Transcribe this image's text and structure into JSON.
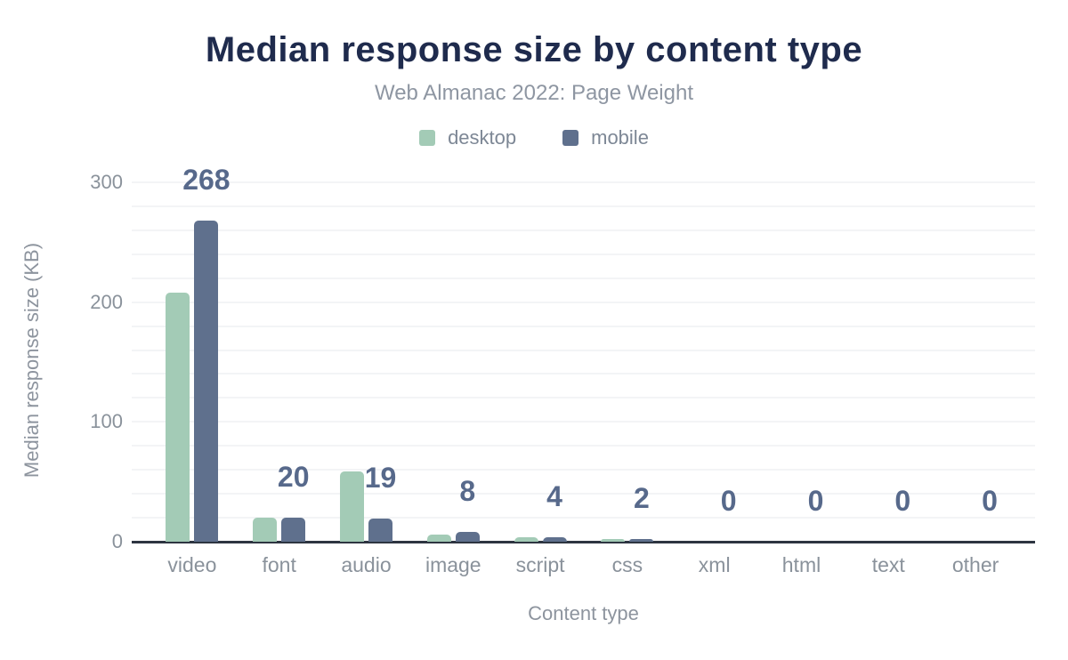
{
  "header": {
    "title": "Median response size by content type",
    "subtitle": "Web Almanac 2022: Page Weight"
  },
  "legend": [
    {
      "label": "desktop",
      "color": "#a3cbb6"
    },
    {
      "label": "mobile",
      "color": "#5f708d"
    }
  ],
  "axes": {
    "ylabel": "Median response size (KB)",
    "xlabel": "Content type"
  },
  "chart_data": {
    "type": "bar",
    "title": "Median response size by content type",
    "subtitle": "Web Almanac 2022: Page Weight",
    "categories": [
      "video",
      "font",
      "audio",
      "image",
      "script",
      "css",
      "xml",
      "html",
      "text",
      "other"
    ],
    "series": [
      {
        "name": "desktop",
        "color": "#a3cbb6",
        "values": [
          208,
          20,
          59,
          6,
          4,
          2,
          0,
          0,
          0,
          0
        ]
      },
      {
        "name": "mobile",
        "color": "#5f708d",
        "values": [
          268,
          20,
          19,
          8,
          4,
          2,
          0,
          0,
          0,
          0
        ]
      }
    ],
    "data_labels": {
      "series": "mobile",
      "values": [
        "268",
        "20",
        "19",
        "8",
        "4",
        "2",
        "0",
        "0",
        "0",
        "0"
      ]
    },
    "xlabel": "Content type",
    "ylabel": "Median response size (KB)",
    "ylim": [
      0,
      300
    ],
    "yticks": [
      0,
      100,
      200,
      300
    ],
    "grid": true,
    "grid_interval": 20,
    "legend_position": "top"
  }
}
